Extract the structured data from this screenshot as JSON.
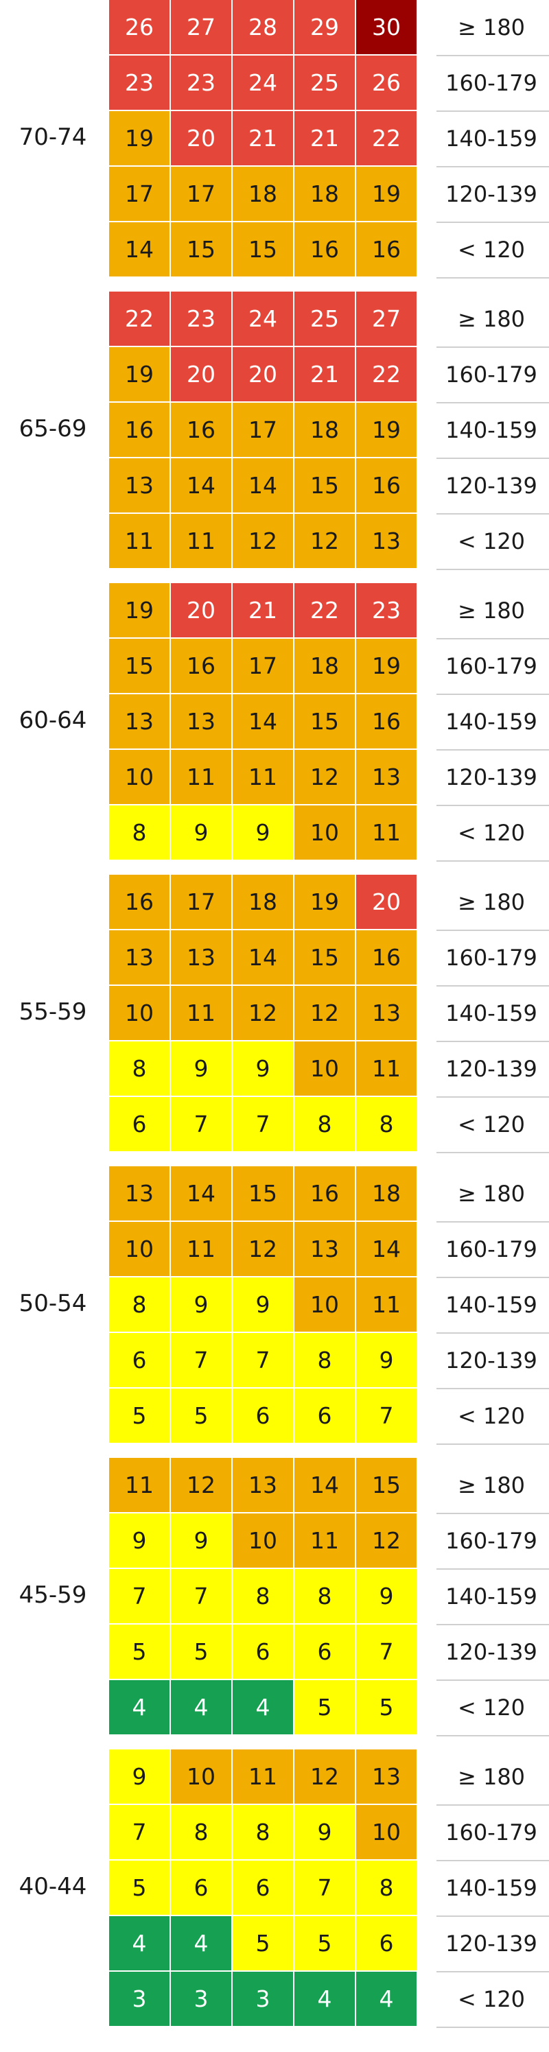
{
  "colors": {
    "green": "#16a052",
    "yellow": "#ffff00",
    "orange": "#f2ae00",
    "red": "#e4473a",
    "darkred": "#990000"
  },
  "chart_data": {
    "type": "heatmap",
    "rows_sbp": [
      "≥ 180",
      "160-179",
      "140-159",
      "120-139",
      "< 120"
    ],
    "groups": [
      {
        "age": "70-74",
        "values": [
          [
            26,
            27,
            28,
            29,
            30
          ],
          [
            23,
            23,
            24,
            25,
            26
          ],
          [
            19,
            20,
            21,
            21,
            22
          ],
          [
            17,
            17,
            18,
            18,
            19
          ],
          [
            14,
            15,
            15,
            16,
            16
          ]
        ],
        "colors": [
          [
            "red",
            "red",
            "red",
            "red",
            "darkred"
          ],
          [
            "red",
            "red",
            "red",
            "red",
            "red"
          ],
          [
            "orange",
            "red",
            "red",
            "red",
            "red"
          ],
          [
            "orange",
            "orange",
            "orange",
            "orange",
            "orange"
          ],
          [
            "orange",
            "orange",
            "orange",
            "orange",
            "orange"
          ]
        ]
      },
      {
        "age": "65-69",
        "values": [
          [
            22,
            23,
            24,
            25,
            27
          ],
          [
            19,
            20,
            20,
            21,
            22
          ],
          [
            16,
            16,
            17,
            18,
            19
          ],
          [
            13,
            14,
            14,
            15,
            16
          ],
          [
            11,
            11,
            12,
            12,
            13
          ]
        ],
        "colors": [
          [
            "red",
            "red",
            "red",
            "red",
            "red"
          ],
          [
            "orange",
            "red",
            "red",
            "red",
            "red"
          ],
          [
            "orange",
            "orange",
            "orange",
            "orange",
            "orange"
          ],
          [
            "orange",
            "orange",
            "orange",
            "orange",
            "orange"
          ],
          [
            "orange",
            "orange",
            "orange",
            "orange",
            "orange"
          ]
        ]
      },
      {
        "age": "60-64",
        "values": [
          [
            19,
            20,
            21,
            22,
            23
          ],
          [
            15,
            16,
            17,
            18,
            19
          ],
          [
            13,
            13,
            14,
            15,
            16
          ],
          [
            10,
            11,
            11,
            12,
            13
          ],
          [
            8,
            9,
            9,
            10,
            11
          ]
        ],
        "colors": [
          [
            "orange",
            "red",
            "red",
            "red",
            "red"
          ],
          [
            "orange",
            "orange",
            "orange",
            "orange",
            "orange"
          ],
          [
            "orange",
            "orange",
            "orange",
            "orange",
            "orange"
          ],
          [
            "orange",
            "orange",
            "orange",
            "orange",
            "orange"
          ],
          [
            "yellow",
            "yellow",
            "yellow",
            "orange",
            "orange"
          ]
        ]
      },
      {
        "age": "55-59",
        "values": [
          [
            16,
            17,
            18,
            19,
            20
          ],
          [
            13,
            13,
            14,
            15,
            16
          ],
          [
            10,
            11,
            12,
            12,
            13
          ],
          [
            8,
            9,
            9,
            10,
            11
          ],
          [
            6,
            7,
            7,
            8,
            8
          ]
        ],
        "colors": [
          [
            "orange",
            "orange",
            "orange",
            "orange",
            "red"
          ],
          [
            "orange",
            "orange",
            "orange",
            "orange",
            "orange"
          ],
          [
            "orange",
            "orange",
            "orange",
            "orange",
            "orange"
          ],
          [
            "yellow",
            "yellow",
            "yellow",
            "orange",
            "orange"
          ],
          [
            "yellow",
            "yellow",
            "yellow",
            "yellow",
            "yellow"
          ]
        ]
      },
      {
        "age": "50-54",
        "values": [
          [
            13,
            14,
            15,
            16,
            18
          ],
          [
            10,
            11,
            12,
            13,
            14
          ],
          [
            8,
            9,
            9,
            10,
            11
          ],
          [
            6,
            7,
            7,
            8,
            9
          ],
          [
            5,
            5,
            6,
            6,
            7
          ]
        ],
        "colors": [
          [
            "orange",
            "orange",
            "orange",
            "orange",
            "orange"
          ],
          [
            "orange",
            "orange",
            "orange",
            "orange",
            "orange"
          ],
          [
            "yellow",
            "yellow",
            "yellow",
            "orange",
            "orange"
          ],
          [
            "yellow",
            "yellow",
            "yellow",
            "yellow",
            "yellow"
          ],
          [
            "yellow",
            "yellow",
            "yellow",
            "yellow",
            "yellow"
          ]
        ]
      },
      {
        "age": "45-59",
        "values": [
          [
            11,
            12,
            13,
            14,
            15
          ],
          [
            9,
            9,
            10,
            11,
            12
          ],
          [
            7,
            7,
            8,
            8,
            9
          ],
          [
            5,
            5,
            6,
            6,
            7
          ],
          [
            4,
            4,
            4,
            5,
            5
          ]
        ],
        "colors": [
          [
            "orange",
            "orange",
            "orange",
            "orange",
            "orange"
          ],
          [
            "yellow",
            "yellow",
            "orange",
            "orange",
            "orange"
          ],
          [
            "yellow",
            "yellow",
            "yellow",
            "yellow",
            "yellow"
          ],
          [
            "yellow",
            "yellow",
            "yellow",
            "yellow",
            "yellow"
          ],
          [
            "green",
            "green",
            "green",
            "yellow",
            "yellow"
          ]
        ]
      },
      {
        "age": "40-44",
        "values": [
          [
            9,
            10,
            11,
            12,
            13
          ],
          [
            7,
            8,
            8,
            9,
            10
          ],
          [
            5,
            6,
            6,
            7,
            8
          ],
          [
            4,
            4,
            5,
            5,
            6
          ],
          [
            3,
            3,
            3,
            4,
            4
          ]
        ],
        "colors": [
          [
            "yellow",
            "orange",
            "orange",
            "orange",
            "orange"
          ],
          [
            "yellow",
            "yellow",
            "yellow",
            "yellow",
            "orange"
          ],
          [
            "yellow",
            "yellow",
            "yellow",
            "yellow",
            "yellow"
          ],
          [
            "green",
            "green",
            "yellow",
            "yellow",
            "yellow"
          ],
          [
            "green",
            "green",
            "green",
            "green",
            "green"
          ]
        ]
      }
    ]
  }
}
